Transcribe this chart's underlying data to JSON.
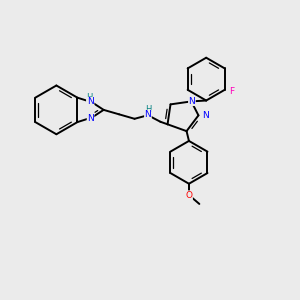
{
  "background_color": "#ebebeb",
  "bond_color": "#000000",
  "N_color": "#0000FF",
  "H_color": "#008080",
  "O_color": "#FF0000",
  "F_color": "#FF00BB",
  "lw": 1.4,
  "lw_double": 0.9,
  "fs": 6.5,
  "xlim": [
    0,
    10
  ],
  "ylim": [
    0,
    10
  ]
}
